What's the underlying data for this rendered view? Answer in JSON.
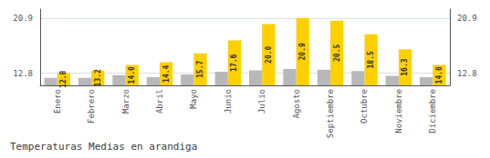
{
  "chart_data": {
    "type": "bar",
    "title": "Temperaturas Medias en arandiga",
    "categories": [
      "Enero",
      "Febrero",
      "Marzo",
      "Abril",
      "Mayo",
      "Junio",
      "Julio",
      "Agosto",
      "Septiembre",
      "Octubre",
      "Noviembre",
      "Diciembre"
    ],
    "series": [
      {
        "color": "#B8B8B8",
        "values": [
          12.1,
          12.1,
          12.5,
          12.2,
          12.6,
          13.0,
          13.2,
          13.4,
          13.3,
          13.1,
          12.4,
          12.2
        ]
      },
      {
        "color": "#FFD000",
        "values": [
          12.8,
          13.2,
          14.0,
          14.4,
          15.7,
          17.6,
          20.0,
          20.9,
          20.5,
          18.5,
          16.3,
          14.0
        ],
        "data_labels": true,
        "value_labels": [
          "12.8",
          "13.2",
          "14.0",
          "14.4",
          "15.7",
          "17.6",
          "20.0",
          "20.9",
          "20.5",
          "18.5",
          "16.3",
          "14.0"
        ]
      }
    ],
    "ylim": [
      11.0,
      22.2
    ],
    "yticks": [
      12.8,
      20.9
    ],
    "grid": true
  }
}
